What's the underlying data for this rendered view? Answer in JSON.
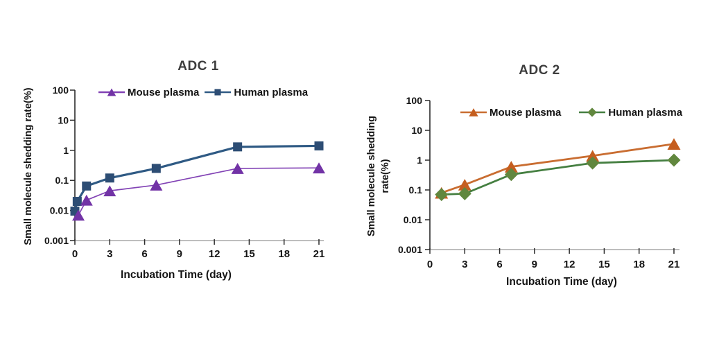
{
  "chart_data": [
    {
      "type": "line",
      "title": "ADC 1",
      "xlabel": "Incubation Time (day)",
      "ylabel_lines": [
        "Small molecule shedding rate(%)"
      ],
      "x_ticks": [
        0,
        3,
        6,
        9,
        12,
        15,
        18,
        21
      ],
      "y_ticks": [
        "100",
        "10",
        "1",
        "0.1",
        "0.01",
        "0.001"
      ],
      "xlim": [
        0,
        21
      ],
      "ylim_log": [
        0.001,
        100
      ],
      "y_scale": "log",
      "grid": false,
      "legend_position": "top-inside",
      "series": [
        {
          "name": "Mouse plasma",
          "marker": "triangle",
          "marker_color": "#7233A6",
          "line_color": "#8243B5",
          "line_width": 1.7,
          "marker_size": 18,
          "x": [
            0.3,
            1,
            3,
            7,
            14,
            21
          ],
          "y": [
            0.007,
            0.022,
            0.045,
            0.07,
            0.25,
            0.26
          ]
        },
        {
          "name": "Human plasma",
          "marker": "square",
          "marker_color": "#2D4D74",
          "line_color": "#2F5A84",
          "line_width": 3.2,
          "marker_size": 13,
          "x": [
            0,
            0.2,
            1,
            3,
            7,
            14,
            21
          ],
          "y": [
            0.0095,
            0.02,
            0.065,
            0.12,
            0.25,
            1.3,
            1.4
          ]
        }
      ]
    },
    {
      "type": "line",
      "title": "ADC 2",
      "xlabel": "Incubation Time (day)",
      "ylabel_lines": [
        "Small molecule shedding",
        "rate(%)"
      ],
      "x_ticks": [
        0,
        3,
        6,
        9,
        12,
        15,
        18,
        21
      ],
      "y_ticks": [
        "100",
        "10",
        "1",
        "0.1",
        "0.01",
        "0.001"
      ],
      "xlim": [
        0,
        21
      ],
      "ylim_log": [
        0.001,
        100
      ],
      "y_scale": "log",
      "grid": false,
      "legend_position": "top-inside",
      "series": [
        {
          "name": "Mouse plasma",
          "marker": "triangle",
          "marker_color": "#C55E1F",
          "line_color": "#C96D31",
          "line_width": 2.8,
          "marker_size": 19,
          "x": [
            1,
            3,
            7,
            14,
            21
          ],
          "y": [
            0.08,
            0.15,
            0.6,
            1.4,
            3.5
          ]
        },
        {
          "name": "Human plasma",
          "marker": "diamond",
          "marker_color": "#61873E",
          "line_color": "#457F41",
          "line_width": 2.8,
          "marker_size": 19,
          "x": [
            1,
            3,
            7,
            14,
            21
          ],
          "y": [
            0.07,
            0.075,
            0.33,
            0.8,
            1.0
          ]
        }
      ]
    }
  ],
  "style": {
    "background": "#FFFFFF",
    "title_color": "#3D3D3D",
    "text_color": "#141414",
    "y_axis_color": "#2B2B2B",
    "x_axis_color": "#A9A9A9",
    "tick_color": "#2B2B2B"
  }
}
